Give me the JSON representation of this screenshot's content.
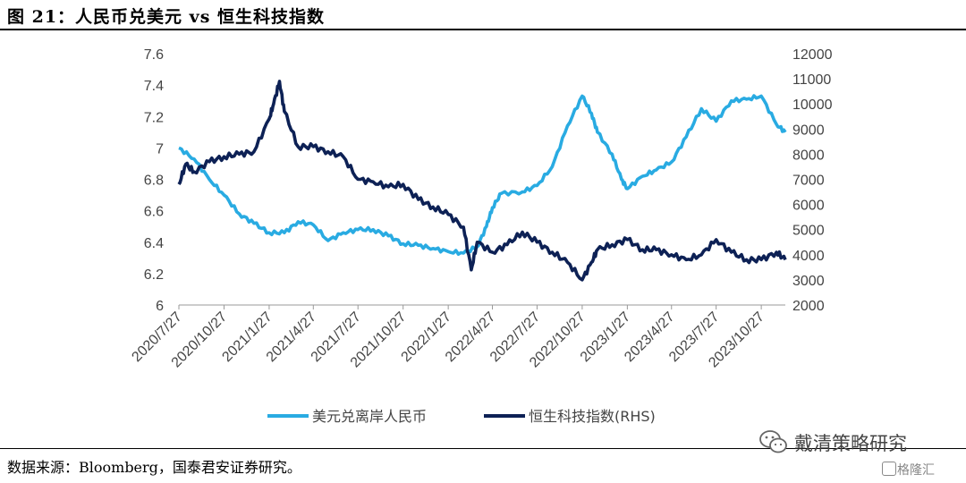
{
  "figure": {
    "title": "图 21：人民币兑美元 vs 恒生科技指数",
    "source": "数据来源：Bloomberg，国泰君安证券研究。",
    "watermark": "戴清策略研究",
    "badge": "格隆汇"
  },
  "chart_data": {
    "type": "line",
    "x_type": "date",
    "x_tick_labels": [
      "2020/7/27",
      "2020/10/27",
      "2021/1/27",
      "2021/4/27",
      "2021/7/27",
      "2021/10/27",
      "2022/1/27",
      "2022/4/27",
      "2022/7/27",
      "2022/10/27",
      "2023/1/27",
      "2023/4/27",
      "2023/7/27",
      "2023/10/27"
    ],
    "xlim": [
      "2020-07-27",
      "2023-12-15"
    ],
    "y_left": {
      "ylim": [
        6.0,
        7.6
      ],
      "ticks": [
        "6",
        "6.2",
        "6.4",
        "6.6",
        "6.8",
        "7",
        "7.2",
        "7.4",
        "7.6"
      ]
    },
    "y_right": {
      "ylim": [
        2000,
        12000
      ],
      "ticks": [
        "2000",
        "3000",
        "4000",
        "5000",
        "6000",
        "7000",
        "8000",
        "9000",
        "10000",
        "11000",
        "12000"
      ],
      "label_suffix": "(RHS)"
    },
    "grid": false,
    "legend_position": "bottom",
    "series": [
      {
        "name": "美元兑离岸人民币",
        "axis": "left",
        "color": "#29ABE2",
        "x": [
          "2020-07-27",
          "2020-08-27",
          "2020-09-27",
          "2020-10-27",
          "2020-11-27",
          "2020-12-27",
          "2021-01-27",
          "2021-02-27",
          "2021-03-27",
          "2021-04-27",
          "2021-05-27",
          "2021-06-27",
          "2021-07-27",
          "2021-08-27",
          "2021-09-27",
          "2021-10-27",
          "2021-11-27",
          "2021-12-27",
          "2022-01-27",
          "2022-02-27",
          "2022-03-27",
          "2022-04-15",
          "2022-04-27",
          "2022-05-15",
          "2022-06-27",
          "2022-07-27",
          "2022-08-27",
          "2022-09-27",
          "2022-10-27",
          "2022-11-15",
          "2022-11-27",
          "2022-12-27",
          "2023-01-15",
          "2023-01-27",
          "2023-02-27",
          "2023-03-27",
          "2023-04-27",
          "2023-05-27",
          "2023-06-27",
          "2023-07-27",
          "2023-08-27",
          "2023-09-27",
          "2023-10-27",
          "2023-11-27",
          "2023-12-15"
        ],
        "values": [
          7.0,
          6.93,
          6.8,
          6.7,
          6.58,
          6.52,
          6.46,
          6.46,
          6.53,
          6.51,
          6.41,
          6.46,
          6.48,
          6.48,
          6.44,
          6.39,
          6.38,
          6.36,
          6.34,
          6.33,
          6.37,
          6.5,
          6.62,
          6.71,
          6.72,
          6.76,
          6.88,
          7.14,
          7.33,
          7.22,
          7.1,
          6.96,
          6.8,
          6.74,
          6.82,
          6.86,
          6.91,
          7.07,
          7.25,
          7.17,
          7.3,
          7.31,
          7.33,
          7.15,
          7.1
        ]
      },
      {
        "name": "恒生科技指数",
        "axis": "right",
        "color": "#0D2155",
        "x": [
          "2020-07-27",
          "2020-08-10",
          "2020-08-27",
          "2020-09-27",
          "2020-10-27",
          "2020-11-27",
          "2020-12-27",
          "2021-01-27",
          "2021-02-05",
          "2021-02-17",
          "2021-02-27",
          "2021-03-27",
          "2021-04-27",
          "2021-05-27",
          "2021-06-27",
          "2021-07-27",
          "2021-08-27",
          "2021-09-27",
          "2021-10-27",
          "2021-11-27",
          "2021-12-27",
          "2022-01-27",
          "2022-02-27",
          "2022-03-15",
          "2022-03-27",
          "2022-04-27",
          "2022-05-27",
          "2022-06-27",
          "2022-07-27",
          "2022-08-27",
          "2022-09-27",
          "2022-10-27",
          "2022-11-15",
          "2022-11-27",
          "2022-12-27",
          "2023-01-27",
          "2023-02-27",
          "2023-03-27",
          "2023-04-27",
          "2023-05-27",
          "2023-06-27",
          "2023-07-27",
          "2023-08-27",
          "2023-09-27",
          "2023-10-27",
          "2023-11-27",
          "2023-12-15"
        ],
        "values": [
          6800,
          7600,
          7300,
          7700,
          7900,
          8000,
          8100,
          9400,
          10000,
          10900,
          9700,
          8300,
          8300,
          8100,
          7900,
          7000,
          6900,
          6700,
          6800,
          6200,
          5900,
          5600,
          5100,
          3400,
          4500,
          4100,
          4400,
          4900,
          4500,
          4100,
          3700,
          3000,
          3700,
          4200,
          4400,
          4600,
          4200,
          4200,
          4000,
          3800,
          4000,
          4600,
          4100,
          3800,
          3800,
          4100,
          3800
        ]
      }
    ]
  }
}
